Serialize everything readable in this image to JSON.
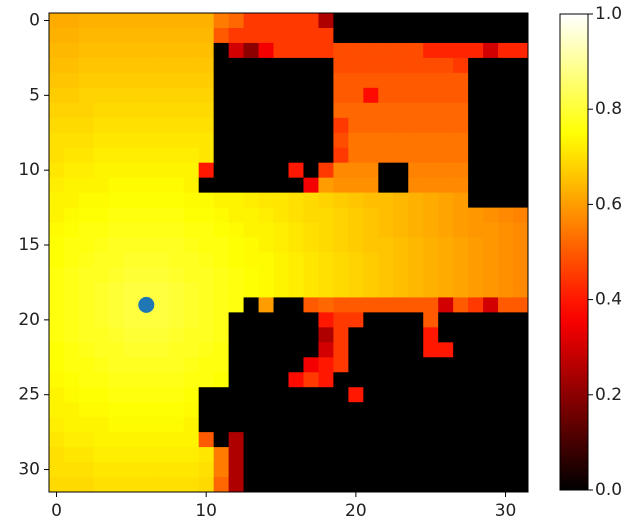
{
  "chart_data": {
    "type": "heatmap",
    "colormap": "hot",
    "xlim": [
      -0.5,
      31.5
    ],
    "ylim": [
      31.5,
      -0.5
    ],
    "xticks": [
      0,
      10,
      20,
      30
    ],
    "yticks": [
      0,
      5,
      10,
      15,
      20,
      25,
      30
    ],
    "colorbar": {
      "lim": [
        0,
        1
      ],
      "ticks": [
        {
          "value": 0,
          "label": "0.0"
        },
        {
          "value": 0.2,
          "label": "0.2"
        },
        {
          "value": 0.4,
          "label": "0.4"
        },
        {
          "value": 0.6,
          "label": "0.6"
        },
        {
          "value": 0.8,
          "label": "0.8"
        },
        {
          "value": 1,
          "label": "1.0"
        }
      ]
    },
    "points": {
      "x": [
        6
      ],
      "y": [
        19
      ],
      "color": "#1f77b4"
    },
    "z": [
      [
        0.62,
        0.62,
        0.63,
        0.63,
        0.63,
        0.63,
        0.63,
        0.63,
        0.63,
        0.63,
        0.63,
        0.55,
        0.52,
        0.45,
        0.45,
        0.45,
        0.45,
        0.45,
        0.25,
        0,
        0,
        0,
        0,
        0,
        0,
        0,
        0,
        0,
        0,
        0,
        0,
        0
      ],
      [
        0.63,
        0.63,
        0.64,
        0.64,
        0.64,
        0.64,
        0.64,
        0.64,
        0.64,
        0.64,
        0.64,
        0.5,
        0.45,
        0.45,
        0.45,
        0.45,
        0.45,
        0.45,
        0.45,
        0,
        0,
        0,
        0,
        0,
        0,
        0,
        0,
        0,
        0,
        0,
        0,
        0
      ],
      [
        0.64,
        0.64,
        0.65,
        0.65,
        0.65,
        0.65,
        0.65,
        0.65,
        0.65,
        0.65,
        0.65,
        0,
        0.3,
        0.2,
        0.35,
        0.45,
        0.45,
        0.45,
        0.45,
        0.48,
        0.48,
        0.48,
        0.48,
        0.48,
        0.48,
        0.42,
        0.42,
        0.42,
        0.42,
        0.3,
        0.42,
        0.42
      ],
      [
        0.65,
        0.65,
        0.66,
        0.66,
        0.66,
        0.66,
        0.66,
        0.66,
        0.66,
        0.66,
        0.66,
        0,
        0,
        0,
        0,
        0,
        0,
        0,
        0,
        0.48,
        0.48,
        0.48,
        0.48,
        0.48,
        0.48,
        0.48,
        0.48,
        0.45,
        0,
        0,
        0,
        0
      ],
      [
        0.66,
        0.66,
        0.67,
        0.67,
        0.67,
        0.67,
        0.67,
        0.67,
        0.67,
        0.67,
        0.67,
        0,
        0,
        0,
        0,
        0,
        0,
        0,
        0,
        0.5,
        0.5,
        0.5,
        0.5,
        0.5,
        0.5,
        0.5,
        0.5,
        0.5,
        0,
        0,
        0,
        0
      ],
      [
        0.67,
        0.67,
        0.68,
        0.68,
        0.68,
        0.68,
        0.68,
        0.68,
        0.68,
        0.68,
        0.68,
        0,
        0,
        0,
        0,
        0,
        0,
        0,
        0,
        0.5,
        0.5,
        0.38,
        0.5,
        0.5,
        0.5,
        0.5,
        0.5,
        0.5,
        0,
        0,
        0,
        0
      ],
      [
        0.68,
        0.68,
        0.68,
        0.69,
        0.69,
        0.69,
        0.69,
        0.69,
        0.69,
        0.69,
        0.69,
        0,
        0,
        0,
        0,
        0,
        0,
        0,
        0,
        0.52,
        0.52,
        0.52,
        0.52,
        0.52,
        0.52,
        0.52,
        0.52,
        0.52,
        0,
        0,
        0,
        0
      ],
      [
        0.69,
        0.69,
        0.69,
        0.7,
        0.7,
        0.7,
        0.7,
        0.7,
        0.7,
        0.7,
        0.7,
        0,
        0,
        0,
        0,
        0,
        0,
        0,
        0,
        0.45,
        0.52,
        0.52,
        0.52,
        0.52,
        0.52,
        0.52,
        0.52,
        0.52,
        0,
        0,
        0,
        0
      ],
      [
        0.7,
        0.7,
        0.7,
        0.71,
        0.71,
        0.71,
        0.71,
        0.71,
        0.71,
        0.71,
        0.71,
        0,
        0,
        0,
        0,
        0,
        0,
        0,
        0,
        0.48,
        0.54,
        0.54,
        0.54,
        0.54,
        0.54,
        0.54,
        0.54,
        0.54,
        0,
        0,
        0,
        0
      ],
      [
        0.7,
        0.71,
        0.71,
        0.72,
        0.72,
        0.72,
        0.72,
        0.72,
        0.72,
        0.72,
        0.71,
        0,
        0,
        0,
        0,
        0,
        0,
        0,
        0,
        0.45,
        0.54,
        0.54,
        0.54,
        0.54,
        0.54,
        0.54,
        0.54,
        0.54,
        0,
        0,
        0,
        0
      ],
      [
        0.71,
        0.72,
        0.72,
        0.73,
        0.73,
        0.73,
        0.73,
        0.73,
        0.73,
        0.73,
        0.4,
        0,
        0,
        0,
        0,
        0,
        0.4,
        0,
        0.45,
        0.57,
        0.57,
        0.57,
        0,
        0,
        0.56,
        0.56,
        0.56,
        0.56,
        0,
        0,
        0,
        0
      ],
      [
        0.72,
        0.73,
        0.73,
        0.73,
        0.74,
        0.74,
        0.74,
        0.74,
        0.74,
        0.73,
        0,
        0,
        0,
        0,
        0,
        0,
        0,
        0.35,
        0.6,
        0.58,
        0.58,
        0.58,
        0,
        0,
        0.57,
        0.57,
        0.57,
        0.57,
        0,
        0,
        0,
        0
      ],
      [
        0.73,
        0.73,
        0.74,
        0.74,
        0.75,
        0.75,
        0.75,
        0.75,
        0.75,
        0.74,
        0.74,
        0.73,
        0.73,
        0.72,
        0.71,
        0.71,
        0.7,
        0.69,
        0.68,
        0.67,
        0.66,
        0.65,
        0.65,
        0.64,
        0.63,
        0.62,
        0.61,
        0.6,
        0,
        0,
        0,
        0
      ],
      [
        0.73,
        0.74,
        0.75,
        0.75,
        0.76,
        0.76,
        0.76,
        0.76,
        0.76,
        0.75,
        0.75,
        0.74,
        0.73,
        0.73,
        0.72,
        0.71,
        0.7,
        0.69,
        0.69,
        0.68,
        0.67,
        0.66,
        0.65,
        0.64,
        0.63,
        0.62,
        0.61,
        0.6,
        0.59,
        0.58,
        0.57,
        0.56
      ],
      [
        0.74,
        0.75,
        0.76,
        0.76,
        0.77,
        0.77,
        0.77,
        0.77,
        0.77,
        0.76,
        0.76,
        0.75,
        0.74,
        0.73,
        0.73,
        0.72,
        0.71,
        0.7,
        0.69,
        0.68,
        0.67,
        0.66,
        0.65,
        0.64,
        0.63,
        0.62,
        0.61,
        0.6,
        0.59,
        0.59,
        0.58,
        0.57
      ],
      [
        0.75,
        0.76,
        0.76,
        0.77,
        0.78,
        0.78,
        0.78,
        0.78,
        0.78,
        0.77,
        0.76,
        0.76,
        0.75,
        0.74,
        0.73,
        0.72,
        0.71,
        0.7,
        0.69,
        0.68,
        0.67,
        0.66,
        0.66,
        0.65,
        0.64,
        0.63,
        0.62,
        0.61,
        0.6,
        0.59,
        0.58,
        0.57
      ],
      [
        0.75,
        0.76,
        0.77,
        0.78,
        0.78,
        0.79,
        0.79,
        0.79,
        0.78,
        0.78,
        0.77,
        0.76,
        0.75,
        0.74,
        0.74,
        0.73,
        0.72,
        0.71,
        0.7,
        0.69,
        0.68,
        0.67,
        0.66,
        0.65,
        0.64,
        0.63,
        0.62,
        0.61,
        0.6,
        0.59,
        0.58,
        0.57
      ],
      [
        0.76,
        0.77,
        0.78,
        0.78,
        0.79,
        0.8,
        0.8,
        0.8,
        0.79,
        0.78,
        0.78,
        0.77,
        0.76,
        0.75,
        0.74,
        0.73,
        0.72,
        0.71,
        0.7,
        0.69,
        0.68,
        0.67,
        0.66,
        0.65,
        0.64,
        0.63,
        0.62,
        0.61,
        0.6,
        0.59,
        0.58,
        0.57
      ],
      [
        0.76,
        0.77,
        0.78,
        0.79,
        0.8,
        0.81,
        0.81,
        0.81,
        0.8,
        0.79,
        0.78,
        0.77,
        0.76,
        0.75,
        0.74,
        0.73,
        0.72,
        0.71,
        0.7,
        0.69,
        0.68,
        0.67,
        0.66,
        0.65,
        0.64,
        0.63,
        0.62,
        0.61,
        0.6,
        0.59,
        0.58,
        0.57
      ],
      [
        0.76,
        0.77,
        0.78,
        0.79,
        0.8,
        0.81,
        0.82,
        0.81,
        0.8,
        0.79,
        0.78,
        0.77,
        0.76,
        0,
        0.6,
        0,
        0,
        0.5,
        0.52,
        0.5,
        0.5,
        0.5,
        0.5,
        0.5,
        0.5,
        0.5,
        0.3,
        0.5,
        0.45,
        0.3,
        0.5,
        0.5
      ],
      [
        0.76,
        0.77,
        0.78,
        0.79,
        0.8,
        0.81,
        0.81,
        0.81,
        0.8,
        0.79,
        0.78,
        0.77,
        0,
        0,
        0,
        0,
        0,
        0,
        0.4,
        0.45,
        0.45,
        0,
        0,
        0,
        0,
        0.5,
        0,
        0,
        0,
        0,
        0,
        0
      ],
      [
        0.76,
        0.77,
        0.78,
        0.78,
        0.79,
        0.8,
        0.8,
        0.8,
        0.79,
        0.78,
        0.78,
        0.77,
        0,
        0,
        0,
        0,
        0,
        0,
        0.25,
        0.45,
        0,
        0,
        0,
        0,
        0,
        0.4,
        0,
        0,
        0,
        0,
        0,
        0
      ],
      [
        0.75,
        0.76,
        0.77,
        0.78,
        0.78,
        0.79,
        0.79,
        0.79,
        0.78,
        0.78,
        0.77,
        0.76,
        0,
        0,
        0,
        0,
        0,
        0,
        0.3,
        0.45,
        0,
        0,
        0,
        0,
        0,
        0.4,
        0.4,
        0,
        0,
        0,
        0,
        0
      ],
      [
        0.75,
        0.76,
        0.76,
        0.77,
        0.78,
        0.78,
        0.78,
        0.78,
        0.78,
        0.77,
        0.76,
        0.76,
        0,
        0,
        0,
        0,
        0,
        0.35,
        0.4,
        0.45,
        0,
        0,
        0,
        0,
        0,
        0,
        0,
        0,
        0,
        0,
        0,
        0
      ],
      [
        0.74,
        0.75,
        0.76,
        0.76,
        0.77,
        0.77,
        0.77,
        0.77,
        0.77,
        0.76,
        0.76,
        0.75,
        0,
        0,
        0,
        0,
        0.38,
        0.45,
        0.4,
        0,
        0,
        0,
        0,
        0,
        0,
        0,
        0,
        0,
        0,
        0,
        0,
        0
      ],
      [
        0.73,
        0.74,
        0.75,
        0.75,
        0.76,
        0.76,
        0.76,
        0.76,
        0.76,
        0.75,
        0,
        0,
        0,
        0,
        0,
        0,
        0,
        0,
        0,
        0,
        0.4,
        0,
        0,
        0,
        0,
        0,
        0,
        0,
        0,
        0,
        0,
        0
      ],
      [
        0.73,
        0.73,
        0.74,
        0.74,
        0.75,
        0.75,
        0.75,
        0.75,
        0.75,
        0.74,
        0,
        0,
        0,
        0,
        0,
        0,
        0,
        0,
        0,
        0,
        0,
        0,
        0,
        0,
        0,
        0,
        0,
        0,
        0,
        0,
        0,
        0
      ],
      [
        0.72,
        0.73,
        0.73,
        0.73,
        0.74,
        0.74,
        0.74,
        0.74,
        0.74,
        0.73,
        0,
        0,
        0,
        0,
        0,
        0,
        0,
        0,
        0,
        0,
        0,
        0,
        0,
        0,
        0,
        0,
        0,
        0,
        0,
        0,
        0,
        0
      ],
      [
        0.71,
        0.72,
        0.72,
        0.73,
        0.73,
        0.73,
        0.73,
        0.73,
        0.73,
        0.73,
        0.5,
        0,
        0.25,
        0,
        0,
        0,
        0,
        0,
        0,
        0,
        0,
        0,
        0,
        0,
        0,
        0,
        0,
        0,
        0,
        0,
        0,
        0
      ],
      [
        0.7,
        0.71,
        0.71,
        0.72,
        0.72,
        0.72,
        0.72,
        0.72,
        0.72,
        0.72,
        0.71,
        0.55,
        0.25,
        0,
        0,
        0,
        0,
        0,
        0,
        0,
        0,
        0,
        0,
        0,
        0,
        0,
        0,
        0,
        0,
        0,
        0,
        0
      ],
      [
        0.7,
        0.7,
        0.7,
        0.71,
        0.71,
        0.71,
        0.71,
        0.71,
        0.71,
        0.71,
        0.7,
        0.55,
        0.25,
        0,
        0,
        0,
        0,
        0,
        0,
        0,
        0,
        0,
        0,
        0,
        0,
        0,
        0,
        0,
        0,
        0,
        0,
        0
      ],
      [
        0.69,
        0.69,
        0.69,
        0.7,
        0.7,
        0.7,
        0.7,
        0.7,
        0.7,
        0.7,
        0.69,
        0.52,
        0.25,
        0,
        0,
        0,
        0,
        0,
        0,
        0,
        0,
        0,
        0,
        0,
        0,
        0,
        0,
        0,
        0,
        0,
        0,
        0
      ]
    ]
  }
}
